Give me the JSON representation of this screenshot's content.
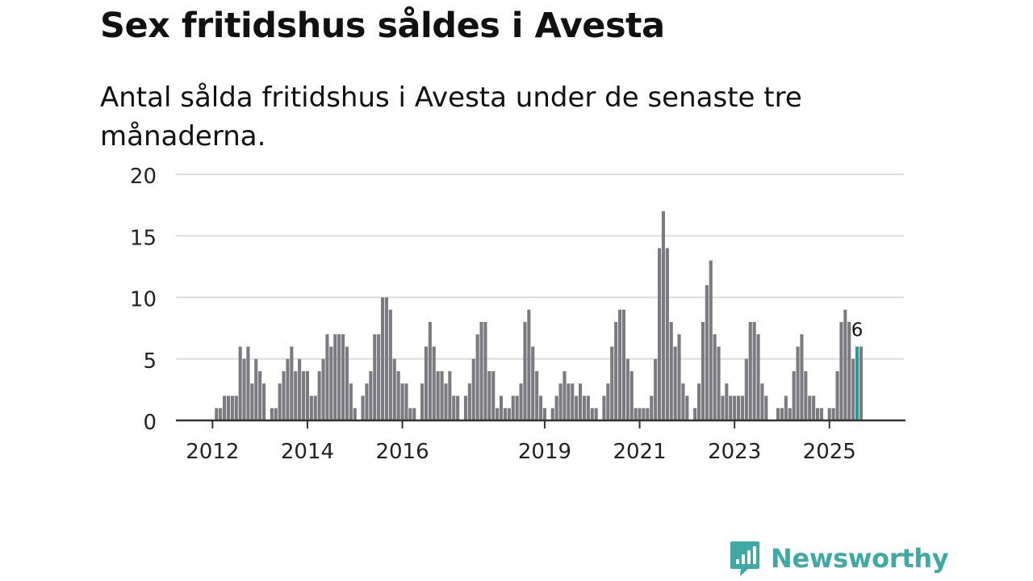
{
  "title": "Sex fritidshus såldes i Avesta",
  "subtitle": "Antal sålda fritidshus i Avesta under de senaste tre månaderna.",
  "logo_text": "Newsworthy",
  "colors": {
    "bar": "#7a7a80",
    "highlight": "#1a9e97",
    "grid": "#dddddd",
    "axis": "#333333",
    "brand": "#3fa9a5"
  },
  "chart_data": {
    "type": "bar",
    "title": "Sex fritidshus såldes i Avesta",
    "ylabel": "",
    "xlabel": "",
    "ylim": [
      0,
      20
    ],
    "yticks": [
      0,
      5,
      10,
      15,
      20
    ],
    "x_start": "2011-06",
    "xticks": [
      {
        "label": "2012",
        "index": 7
      },
      {
        "label": "2014",
        "index": 31
      },
      {
        "label": "2016",
        "index": 55
      },
      {
        "label": "2019",
        "index": 91
      },
      {
        "label": "2021",
        "index": 115
      },
      {
        "label": "2023",
        "index": 139
      },
      {
        "label": "2025",
        "index": 163
      }
    ],
    "values": [
      0,
      0,
      0,
      0,
      0,
      0,
      0,
      0,
      1,
      1,
      2,
      2,
      2,
      2,
      6,
      5,
      6,
      3,
      5,
      4,
      3,
      0,
      1,
      1,
      3,
      4,
      5,
      6,
      4,
      5,
      4,
      4,
      2,
      2,
      4,
      5,
      7,
      6,
      7,
      7,
      7,
      6,
      3,
      1,
      0,
      2,
      3,
      4,
      7,
      7,
      10,
      10,
      9,
      5,
      4,
      3,
      3,
      1,
      1,
      0,
      3,
      6,
      8,
      6,
      4,
      4,
      3,
      4,
      2,
      2,
      0,
      2,
      3,
      5,
      7,
      8,
      8,
      4,
      4,
      1,
      2,
      1,
      1,
      2,
      2,
      3,
      8,
      9,
      6,
      4,
      2,
      1,
      0,
      1,
      2,
      3,
      4,
      3,
      3,
      2,
      3,
      2,
      2,
      1,
      1,
      0,
      2,
      3,
      6,
      8,
      9,
      9,
      5,
      4,
      1,
      1,
      1,
      1,
      2,
      5,
      14,
      17,
      14,
      8,
      6,
      7,
      3,
      2,
      0,
      1,
      3,
      8,
      11,
      13,
      7,
      6,
      2,
      3,
      2,
      2,
      2,
      2,
      5,
      8,
      8,
      7,
      3,
      2,
      0,
      0,
      1,
      1,
      2,
      1,
      4,
      6,
      7,
      4,
      2,
      2,
      1,
      1,
      0,
      1,
      1,
      4,
      8,
      9,
      8,
      5,
      6,
      6
    ],
    "highlight_index": 170,
    "highlight_label": "6"
  }
}
